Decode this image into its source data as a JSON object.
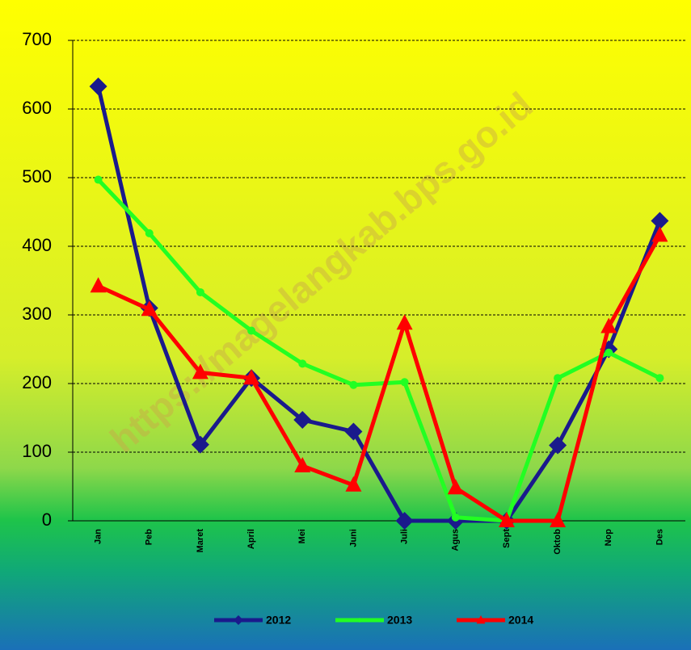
{
  "chart_data": {
    "type": "line",
    "watermark": "https://magelangkab.bps.go.id",
    "categories": [
      "Jan",
      "Peb",
      "Maret",
      "April",
      "Mei",
      "Juni",
      "Juli",
      "Agus",
      "Sept",
      "Oktob",
      "Nop",
      "Des"
    ],
    "series": [
      {
        "name": "2012",
        "color": "#1a1a8c",
        "marker": "diamond",
        "values": [
          633,
          310,
          111,
          208,
          147,
          130,
          0,
          0,
          0,
          110,
          250,
          437
        ]
      },
      {
        "name": "2013",
        "color": "#22ff22",
        "marker": "circle",
        "values": [
          497,
          419,
          333,
          277,
          229,
          198,
          202,
          5,
          0,
          208,
          245,
          208
        ]
      },
      {
        "name": "2014",
        "color": "#ff0000",
        "marker": "triangle",
        "values": [
          342,
          308,
          216,
          208,
          80,
          52,
          288,
          48,
          0,
          0,
          283,
          416
        ]
      }
    ],
    "ylim": [
      0,
      700
    ],
    "yticks": [
      0,
      100,
      200,
      300,
      400,
      500,
      600,
      700
    ],
    "grid": true,
    "legend": "bottom"
  }
}
